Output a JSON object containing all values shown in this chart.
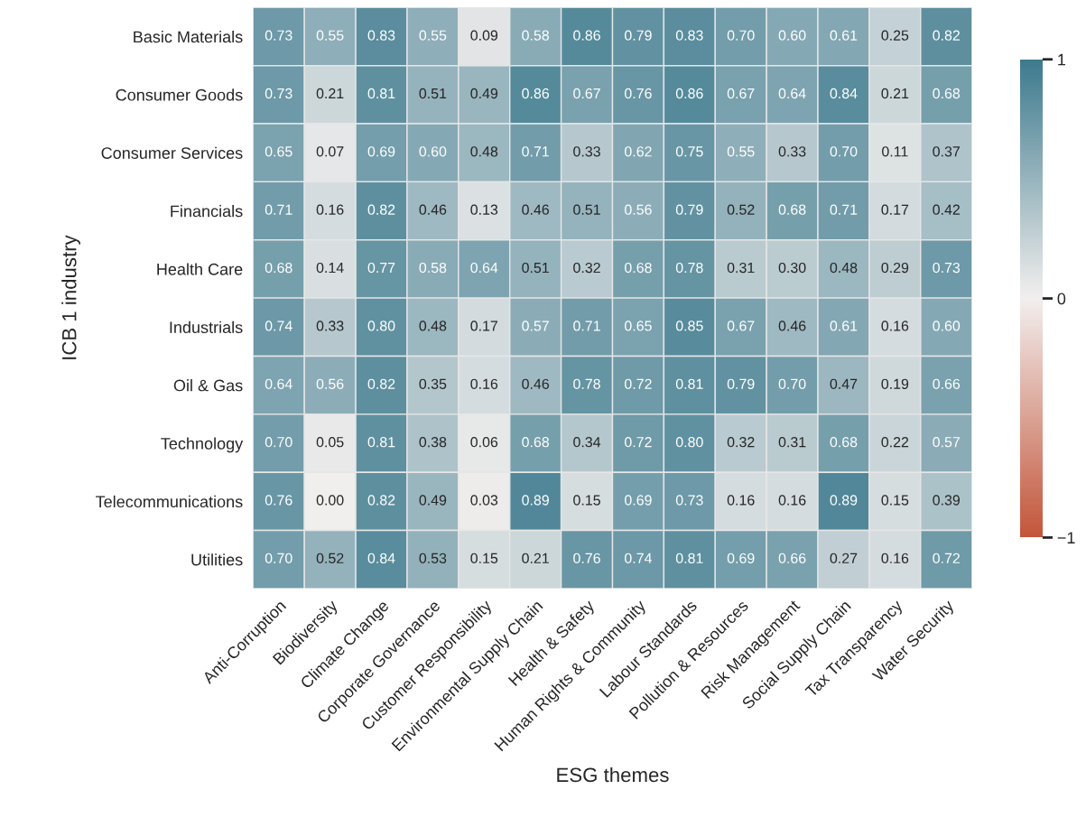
{
  "chart_data": {
    "type": "heatmap",
    "xlabel": "ESG themes",
    "ylabel": "ICB 1 industry",
    "categories": [
      "Anti-Corruption",
      "Biodiversity",
      "Climate Change",
      "Corporate Governance",
      "Customer Responsibility",
      "Environmental Supply Chain",
      "Health & Safety",
      "Human Rights & Community",
      "Labour Standards",
      "Pollution & Resources",
      "Risk Management",
      "Social Supply Chain",
      "Tax Transparency",
      "Water Security"
    ],
    "y_categories": [
      "Basic Materials",
      "Consumer Goods",
      "Consumer Services",
      "Financials",
      "Health Care",
      "Industrials",
      "Oil & Gas",
      "Technology",
      "Telecommunications",
      "Utilities"
    ],
    "cells": [
      [
        0.73,
        0.55,
        0.83,
        0.55,
        0.09,
        0.58,
        0.86,
        0.79,
        0.83,
        0.7,
        0.6,
        0.61,
        0.25,
        0.82
      ],
      [
        0.73,
        0.21,
        0.81,
        0.51,
        0.49,
        0.86,
        0.67,
        0.76,
        0.86,
        0.67,
        0.64,
        0.84,
        0.21,
        0.68
      ],
      [
        0.65,
        0.07,
        0.69,
        0.6,
        0.48,
        0.71,
        0.33,
        0.62,
        0.75,
        0.55,
        0.33,
        0.7,
        0.11,
        0.37
      ],
      [
        0.71,
        0.16,
        0.82,
        0.46,
        0.13,
        0.46,
        0.51,
        0.56,
        0.79,
        0.52,
        0.68,
        0.71,
        0.17,
        0.42
      ],
      [
        0.68,
        0.14,
        0.77,
        0.58,
        0.64,
        0.51,
        0.32,
        0.68,
        0.78,
        0.31,
        0.3,
        0.48,
        0.29,
        0.73
      ],
      [
        0.74,
        0.33,
        0.8,
        0.48,
        0.17,
        0.57,
        0.71,
        0.65,
        0.85,
        0.67,
        0.46,
        0.61,
        0.16,
        0.6
      ],
      [
        0.64,
        0.56,
        0.82,
        0.35,
        0.16,
        0.46,
        0.78,
        0.72,
        0.81,
        0.79,
        0.7,
        0.47,
        0.19,
        0.66
      ],
      [
        0.7,
        0.05,
        0.81,
        0.38,
        0.06,
        0.68,
        0.34,
        0.72,
        0.8,
        0.32,
        0.31,
        0.68,
        0.22,
        0.57
      ],
      [
        0.76,
        0.0,
        0.82,
        0.49,
        0.03,
        0.89,
        0.15,
        0.69,
        0.73,
        0.16,
        0.16,
        0.89,
        0.15,
        0.39
      ],
      [
        0.7,
        0.52,
        0.84,
        0.53,
        0.15,
        0.21,
        0.76,
        0.74,
        0.81,
        0.69,
        0.66,
        0.27,
        0.16,
        0.72
      ]
    ],
    "cell_labels": [
      [
        "0.73",
        "0.55",
        "0.83",
        "0.55",
        "0.09",
        "0.58",
        "0.86",
        "0.79",
        "0.83",
        "0.70",
        "0.60",
        "0.61",
        "0.25",
        "0.82"
      ],
      [
        "0.73",
        "0.21",
        "0.81",
        "0.51",
        "0.49",
        "0.86",
        "0.67",
        "0.76",
        "0.86",
        "0.67",
        "0.64",
        "0.84",
        "0.21",
        "0.68"
      ],
      [
        "0.65",
        "0.07",
        "0.69",
        "0.60",
        "0.48",
        "0.71",
        "0.33",
        "0.62",
        "0.75",
        "0.55",
        "0.33",
        "0.70",
        "0.11",
        "0.37"
      ],
      [
        "0.71",
        "0.16",
        "0.82",
        "0.46",
        "0.13",
        "0.46",
        "0.51",
        "0.56",
        "0.79",
        "0.52",
        "0.68",
        "0.71",
        "0.17",
        "0.42"
      ],
      [
        "0.68",
        "0.14",
        "0.77",
        "0.58",
        "0.64",
        "0.51",
        "0.32",
        "0.68",
        "0.78",
        "0.31",
        "0.30",
        "0.48",
        "0.29",
        "0.73"
      ],
      [
        "0.74",
        "0.33",
        "0.80",
        "0.48",
        "0.17",
        "0.57",
        "0.71",
        "0.65",
        "0.85",
        "0.67",
        "0.46",
        "0.61",
        "0.16",
        "0.60"
      ],
      [
        "0.64",
        "0.56",
        "0.82",
        "0.35",
        "0.16",
        "0.46",
        "0.78",
        "0.72",
        "0.81",
        "0.79",
        "0.70",
        "0.47",
        "0.19",
        "0.66"
      ],
      [
        "0.70",
        "0.05",
        "0.81",
        "0.38",
        "0.06",
        "0.68",
        "0.34",
        "0.72",
        "0.80",
        "0.32",
        "0.31",
        "0.68",
        "0.22",
        "0.57"
      ],
      [
        "0.76",
        "0.00",
        "0.82",
        "0.49",
        "0.03",
        "0.89",
        "0.15",
        "0.69",
        "0.73",
        "0.16",
        "0.16",
        "0.89",
        "0.15",
        "0.39"
      ],
      [
        "0.70",
        "0.52",
        "0.84",
        "0.53",
        "0.15",
        "0.21",
        "0.76",
        "0.74",
        "0.81",
        "0.69",
        "0.66",
        "0.27",
        "0.16",
        "0.72"
      ]
    ],
    "colors": [
      "#c3553a",
      "#f2efee",
      "#3d7a8e"
    ],
    "clim": [
      -1,
      1
    ],
    "cticks": [
      1,
      0,
      {
        "value": -1,
        "label": "−1"
      }
    ]
  }
}
